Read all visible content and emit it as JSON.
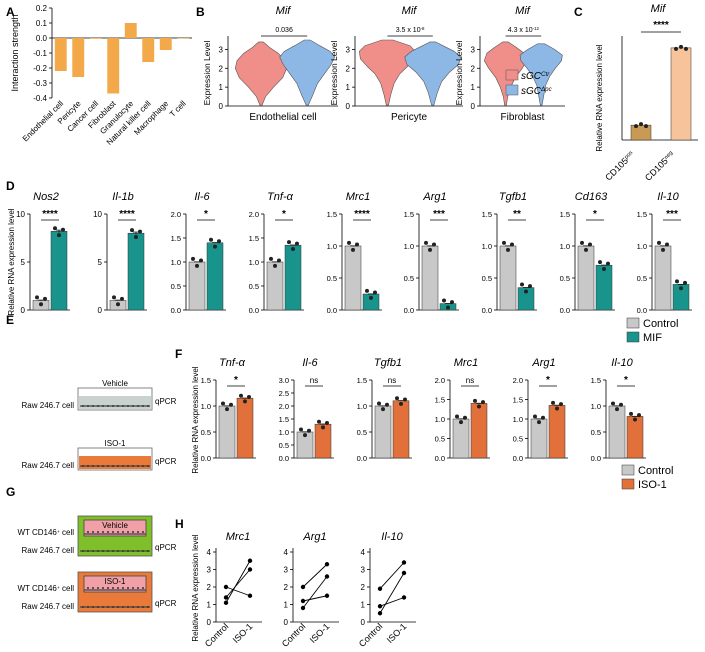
{
  "figure": {
    "panel_labels": [
      "A",
      "B",
      "C",
      "D",
      "E",
      "F",
      "G",
      "H"
    ],
    "colors": {
      "orange_bar": "#f3a84a",
      "pink_violin": "#f08e8a",
      "blue_violin": "#8db8e6",
      "gray_bar": "#c8c8c8",
      "teal_bar": "#19948c",
      "orange_iso": "#e2703a",
      "brown_bar": "#c99a55",
      "peach_bar": "#f7c39a",
      "green_medium": "#7fbf2a",
      "orange_medium": "#e97a3a",
      "pink_insert": "#f0a0a6"
    }
  },
  "chart_data": [
    {
      "panel": "A",
      "type": "bar",
      "ylabel": "Interaction strength",
      "ylim": [
        -0.4,
        0.2
      ],
      "yticks": [
        "0.2",
        "0.1",
        "0.0",
        "-0.1",
        "-0.2",
        "-0.3",
        "-0.4"
      ],
      "yticks_values": [
        0.2,
        0.1,
        0.0,
        -0.1,
        -0.2,
        -0.3,
        -0.4
      ],
      "categories": [
        "Endothelial cell",
        "Pericyte",
        "Cancer cell",
        "Fibroblast",
        "Granulocyte",
        "Natural killer cell",
        "Macrophage",
        "T cell"
      ],
      "values": [
        -0.22,
        -0.26,
        -0.005,
        -0.37,
        0.1,
        -0.16,
        -0.08,
        0.0
      ]
    },
    {
      "panel": "B",
      "type": "violin",
      "ylabel": "Expression Level",
      "ylim": [
        0,
        3.5
      ],
      "yticks": [
        "0",
        "1",
        "2",
        "3"
      ],
      "legend": [
        "sGC",
        "sGC"
      ],
      "legend_sup": [
        "Ctr",
        "Δpc"
      ],
      "plots": [
        {
          "title": "Mif",
          "xlabel": "Endothelial cell",
          "pvalue": "0.036"
        },
        {
          "title": "Mif",
          "xlabel": "Pericyte",
          "pvalue": "3.5 x 10",
          "pexp": "-8"
        },
        {
          "title": "Mif",
          "xlabel": "Fibroblast",
          "pvalue": "4.3 x 10",
          "pexp": "-12"
        }
      ]
    },
    {
      "panel": "C",
      "type": "bar",
      "title": "Mif",
      "ylabel": "Relative RNA expression level",
      "ylim": [
        0,
        7
      ],
      "significance": "****",
      "categories": [
        "CD105",
        "CD105"
      ],
      "category_sup": [
        "pos",
        "neg"
      ],
      "values": [
        1.0,
        6.2
      ]
    },
    {
      "panel": "D",
      "type": "bar",
      "ylabel": "Relative RNA expression level",
      "series_names": [
        "Control",
        "MIF"
      ],
      "genes": [
        {
          "name": "Nos2",
          "values": [
            1.0,
            8.2
          ],
          "ymax": 10,
          "sig": "****"
        },
        {
          "name": "Il-1b",
          "values": [
            1.0,
            8.0
          ],
          "ymax": 10,
          "sig": "****"
        },
        {
          "name": "Il-6",
          "values": [
            1.0,
            1.4
          ],
          "ymax": 2.0,
          "ticks": [
            "0.0",
            "0.5",
            "1.0",
            "1.5",
            "2.0"
          ],
          "sig": "*"
        },
        {
          "name": "Tnf-α",
          "values": [
            1.0,
            1.35
          ],
          "ymax": 2.0,
          "ticks": [
            "0.0",
            "0.5",
            "1.0",
            "1.5",
            "2.0"
          ],
          "sig": "*"
        },
        {
          "name": "Mrc1",
          "values": [
            1.0,
            0.25
          ],
          "ymax": 1.5,
          "ticks": [
            "0.0",
            "0.5",
            "1.0",
            "1.5"
          ],
          "sig": "****"
        },
        {
          "name": "Arg1",
          "values": [
            1.0,
            0.1
          ],
          "ymax": 1.5,
          "ticks": [
            "0.0",
            "0.5",
            "1.0",
            "1.5"
          ],
          "sig": "***"
        },
        {
          "name": "Tgfb1",
          "values": [
            1.0,
            0.35
          ],
          "ymax": 1.5,
          "ticks": [
            "0.0",
            "0.5",
            "1.0",
            "1.5"
          ],
          "sig": "**"
        },
        {
          "name": "Cd163",
          "values": [
            1.0,
            0.7
          ],
          "ymax": 1.5,
          "ticks": [
            "0.0",
            "0.5",
            "1.0",
            "1.5"
          ],
          "sig": "*"
        },
        {
          "name": "Il-10",
          "values": [
            1.0,
            0.4
          ],
          "ymax": 1.5,
          "ticks": [
            "0.0",
            "0.5",
            "1.0",
            "1.5"
          ],
          "sig": "***"
        }
      ]
    },
    {
      "panel": "F",
      "type": "bar",
      "ylabel": "Relative RNA expression level",
      "series_names": [
        "Control",
        "ISO-1"
      ],
      "genes": [
        {
          "name": "Tnf-α",
          "values": [
            1.0,
            1.15
          ],
          "ymax": 1.5,
          "ticks": [
            "0.0",
            "0.5",
            "1.0",
            "1.5"
          ],
          "sig": "*"
        },
        {
          "name": "Il-6",
          "values": [
            1.0,
            1.3
          ],
          "ymax": 3.0,
          "ticks": [
            "0.0",
            "0.5",
            "1.0",
            "1.5",
            "2.0",
            "2.5",
            "3.0"
          ],
          "sig": "ns"
        },
        {
          "name": "Tgfb1",
          "values": [
            1.0,
            1.1
          ],
          "ymax": 1.5,
          "ticks": [
            "0.0",
            "0.5",
            "1.0",
            "1.5"
          ],
          "sig": "ns"
        },
        {
          "name": "Mrc1",
          "values": [
            1.0,
            1.4
          ],
          "ymax": 2.0,
          "ticks": [
            "0.0",
            "0.5",
            "1.0",
            "1.5",
            "2.0"
          ],
          "sig": "ns"
        },
        {
          "name": "Arg1",
          "values": [
            1.0,
            1.35
          ],
          "ymax": 2.0,
          "ticks": [
            "0.0",
            "0.5",
            "1.0",
            "1.5",
            "2.0"
          ],
          "sig": "*"
        },
        {
          "name": "Il-10",
          "values": [
            1.0,
            0.8
          ],
          "ymax": 1.5,
          "ticks": [
            "0.0",
            "0.5",
            "1.0",
            "1.5"
          ],
          "sig": "*"
        }
      ]
    },
    {
      "panel": "H",
      "type": "line",
      "ylabel": "Relative RNA expression level",
      "categories": [
        "Control",
        "ISO-1"
      ],
      "ylim": [
        0,
        4
      ],
      "yticks": [
        "0",
        "1",
        "2",
        "3",
        "4"
      ],
      "plots": [
        {
          "name": "Mrc1",
          "pairs": [
            [
              1.1,
              3.5
            ],
            [
              1.4,
              3.0
            ],
            [
              2.0,
              1.5
            ]
          ]
        },
        {
          "name": "Arg1",
          "pairs": [
            [
              0.8,
              2.6
            ],
            [
              1.2,
              1.5
            ],
            [
              2.0,
              3.3
            ]
          ]
        },
        {
          "name": "Il-10",
          "pairs": [
            [
              0.5,
              2.8
            ],
            [
              0.9,
              1.4
            ],
            [
              1.9,
              3.4
            ]
          ]
        }
      ]
    }
  ],
  "schematic_E": {
    "vehicle_label": "Vehicle",
    "iso_label": "ISO-1",
    "cell_label": "Raw 246.7 cell",
    "readout": "qPCR"
  },
  "schematic_G": {
    "vehicle_label": "Vehicle",
    "iso_label": "ISO-1",
    "insert_label": "WT CD146",
    "insert_sup": "+",
    "insert_suffix": " cell",
    "cell_label": "Raw 246.7 cell",
    "readout": "qPCR"
  },
  "legends": {
    "D": [
      "Control",
      "MIF"
    ],
    "F": [
      "Control",
      "ISO-1"
    ]
  }
}
